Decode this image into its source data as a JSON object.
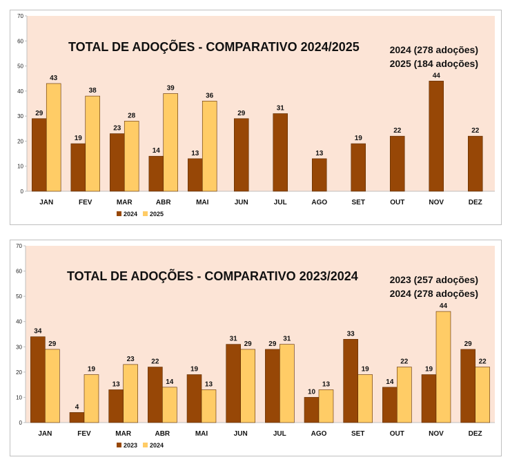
{
  "chart_data": [
    {
      "type": "bar",
      "title": "TOTAL DE ADOÇÕES - COMPARATIVO 2024/2025",
      "subtitle_lines": [
        "2024 (278 adoções)",
        "2025 (184 adoções)"
      ],
      "categories": [
        "JAN",
        "FEV",
        "MAR",
        "ABR",
        "MAI",
        "JUN",
        "JUL",
        "AGO",
        "SET",
        "OUT",
        "NOV",
        "DEZ"
      ],
      "series": [
        {
          "name": "2024",
          "color": "#974706",
          "values": [
            29,
            19,
            23,
            14,
            13,
            29,
            31,
            13,
            19,
            22,
            44,
            22
          ]
        },
        {
          "name": "2025",
          "color": "#FFCC66",
          "values": [
            43,
            38,
            28,
            39,
            36,
            null,
            null,
            null,
            null,
            null,
            null,
            null
          ]
        }
      ],
      "ylim": [
        0,
        70
      ],
      "yticks": [
        0,
        10,
        20,
        30,
        40,
        50,
        60,
        70
      ],
      "plot_background": "#FCE4D6",
      "legend": "bottom-left",
      "grid": false
    },
    {
      "type": "bar",
      "title": "TOTAL DE ADOÇÕES - COMPARATIVO 2023/2024",
      "subtitle_lines": [
        "2023 (257 adoções)",
        "2024 (278 adoções)"
      ],
      "categories": [
        "JAN",
        "FEV",
        "MAR",
        "ABR",
        "MAI",
        "JUN",
        "JUL",
        "AGO",
        "SET",
        "OUT",
        "NOV",
        "DEZ"
      ],
      "series": [
        {
          "name": "2023",
          "color": "#974706",
          "values": [
            34,
            4,
            13,
            22,
            19,
            31,
            29,
            10,
            33,
            14,
            19,
            29
          ]
        },
        {
          "name": "2024",
          "color": "#FFCC66",
          "values": [
            29,
            19,
            23,
            14,
            13,
            29,
            31,
            13,
            19,
            22,
            44,
            22
          ]
        }
      ],
      "ylim": [
        0,
        70
      ],
      "yticks": [
        0,
        10,
        20,
        30,
        40,
        50,
        60,
        70
      ],
      "plot_background": "#FCE4D6",
      "legend": "bottom-left",
      "grid": false
    }
  ]
}
